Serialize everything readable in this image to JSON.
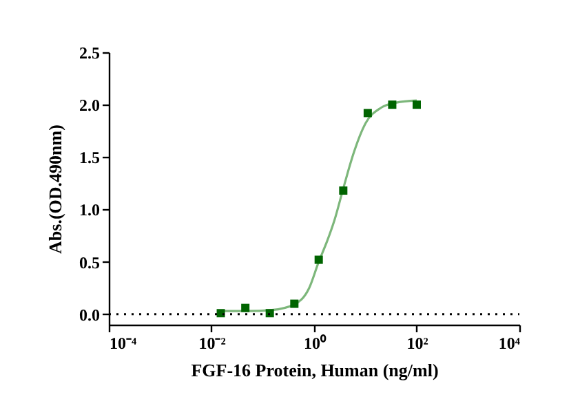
{
  "chart_data": {
    "type": "scatter",
    "xlabel": "FGF-16 Protein, Human  (ng/ml)",
    "ylabel": "Abs.(OD.490nm)",
    "log": "x",
    "xlim": [
      0.0001,
      10000
    ],
    "xticks": [
      {
        "value": 0.0001,
        "label": "10⁻⁴"
      },
      {
        "value": 0.01,
        "label": "10⁻²"
      },
      {
        "value": 1,
        "label": "10⁰"
      },
      {
        "value": 100,
        "label": "10²"
      },
      {
        "value": 10000,
        "label": "10⁴"
      }
    ],
    "ylim": [
      -0.1,
      2.5
    ],
    "yticks": [
      {
        "value": 0,
        "label": "0.0"
      },
      {
        "value": 0.5,
        "label": "0.5"
      },
      {
        "value": 1,
        "label": "1.0"
      },
      {
        "value": 1.5,
        "label": "1.5"
      },
      {
        "value": 2,
        "label": "2.0"
      },
      {
        "value": 2.5,
        "label": "2.5"
      }
    ],
    "grid": false,
    "ref_lines": [
      {
        "axis": "y",
        "value": 0,
        "line_style": "dotted",
        "color": "#000000"
      }
    ],
    "series": [
      {
        "type": "line",
        "color": "#7db77b",
        "x": [
          0.0152,
          0.05,
          0.15,
          0.4,
          0.8,
          1.23,
          1.8,
          2.5,
          3.7,
          6,
          10,
          20,
          40,
          100
        ],
        "values": [
          0.03,
          0.03,
          0.04,
          0.09,
          0.25,
          0.5,
          0.7,
          0.9,
          1.2,
          1.55,
          1.82,
          1.97,
          2.02,
          2.04
        ]
      },
      {
        "type": "scatter",
        "marker": "square",
        "color": "#006400",
        "x": [
          0.0152,
          0.0457,
          0.137,
          0.412,
          1.23,
          3.7,
          11.1,
          33.3,
          100
        ],
        "values": [
          0.01,
          0.06,
          0.01,
          0.1,
          0.52,
          1.18,
          1.92,
          2.0,
          2.0
        ]
      }
    ]
  }
}
